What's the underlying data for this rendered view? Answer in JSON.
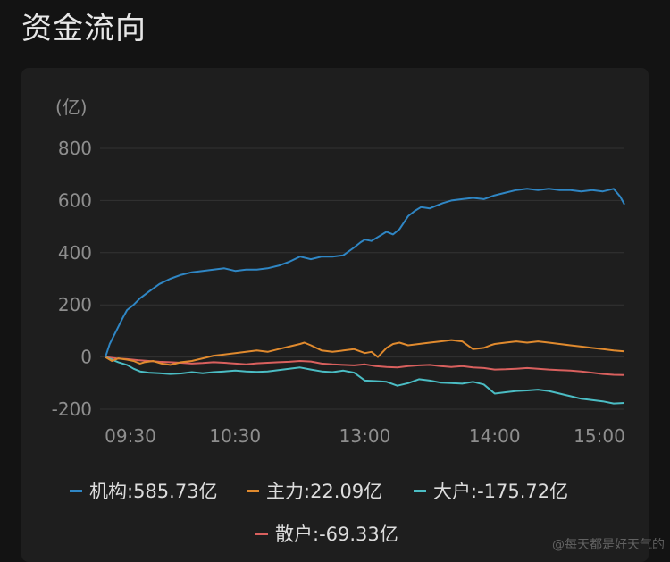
{
  "title": "资金流向",
  "unit": "(亿)",
  "chart_data": {
    "type": "line",
    "xlabel": "",
    "ylabel": "(亿)",
    "ylim": [
      -200,
      800
    ],
    "yticks": [
      800,
      600,
      400,
      200,
      0,
      -200
    ],
    "xticks": [
      {
        "label": "09:30",
        "t": 0
      },
      {
        "label": "10:30",
        "t": 60
      },
      {
        "label": "13:00",
        "t": 120
      },
      {
        "label": "14:00",
        "t": 180
      },
      {
        "label": "15:00",
        "t": 240
      }
    ],
    "xlim": [
      0,
      240
    ],
    "grid": true,
    "legend": "bottom",
    "series": [
      {
        "name": "机构",
        "legend": "机构:585.73亿",
        "color": "#2f86c4",
        "t": [
          0,
          2,
          5,
          8,
          10,
          13,
          16,
          20,
          25,
          30,
          35,
          40,
          45,
          50,
          55,
          60,
          65,
          70,
          75,
          80,
          85,
          90,
          95,
          100,
          105,
          110,
          115,
          118,
          120,
          123,
          126,
          130,
          133,
          136,
          140,
          143,
          146,
          150,
          153,
          156,
          160,
          165,
          170,
          175,
          180,
          185,
          190,
          195,
          200,
          205,
          210,
          215,
          220,
          225,
          230,
          235,
          238,
          240
        ],
        "v": [
          0,
          50,
          100,
          150,
          180,
          200,
          225,
          250,
          280,
          300,
          315,
          325,
          330,
          335,
          340,
          330,
          335,
          335,
          340,
          350,
          365,
          385,
          375,
          385,
          385,
          390,
          420,
          440,
          450,
          445,
          460,
          480,
          470,
          490,
          540,
          560,
          575,
          570,
          580,
          590,
          600,
          605,
          610,
          605,
          620,
          630,
          640,
          645,
          640,
          645,
          640,
          640,
          635,
          640,
          635,
          645,
          615,
          585
        ]
      },
      {
        "name": "主力",
        "legend": "主力:22.09亿",
        "color": "#e08a2e",
        "t": [
          0,
          3,
          6,
          10,
          13,
          16,
          18,
          22,
          26,
          30,
          35,
          40,
          45,
          50,
          55,
          60,
          65,
          70,
          75,
          80,
          85,
          90,
          92,
          95,
          100,
          105,
          110,
          115,
          120,
          123,
          126,
          130,
          133,
          136,
          140,
          145,
          150,
          155,
          160,
          165,
          170,
          175,
          178,
          180,
          185,
          190,
          195,
          200,
          205,
          210,
          215,
          220,
          225,
          230,
          235,
          240
        ],
        "v": [
          0,
          -15,
          -5,
          -10,
          -15,
          -25,
          -20,
          -15,
          -25,
          -30,
          -20,
          -15,
          -5,
          5,
          10,
          15,
          20,
          25,
          20,
          30,
          40,
          50,
          55,
          45,
          25,
          20,
          25,
          30,
          15,
          20,
          0,
          35,
          50,
          55,
          45,
          50,
          55,
          60,
          65,
          60,
          30,
          35,
          45,
          50,
          55,
          60,
          55,
          60,
          55,
          50,
          45,
          40,
          35,
          30,
          25,
          22
        ]
      },
      {
        "name": "大户",
        "legend": "大户:-175.72亿",
        "color": "#4bbdc4",
        "t": [
          0,
          3,
          6,
          10,
          13,
          16,
          20,
          25,
          30,
          35,
          40,
          45,
          50,
          55,
          60,
          65,
          70,
          75,
          80,
          85,
          90,
          95,
          100,
          105,
          110,
          115,
          120,
          125,
          130,
          135,
          140,
          145,
          150,
          155,
          160,
          165,
          170,
          175,
          180,
          185,
          190,
          195,
          200,
          205,
          210,
          215,
          220,
          225,
          230,
          235,
          240
        ],
        "v": [
          0,
          -10,
          -20,
          -30,
          -45,
          -55,
          -60,
          -62,
          -65,
          -63,
          -58,
          -62,
          -58,
          -55,
          -52,
          -55,
          -57,
          -55,
          -50,
          -45,
          -40,
          -48,
          -55,
          -58,
          -52,
          -60,
          -90,
          -92,
          -95,
          -110,
          -100,
          -85,
          -90,
          -98,
          -100,
          -102,
          -95,
          -105,
          -140,
          -135,
          -130,
          -128,
          -125,
          -130,
          -140,
          -150,
          -160,
          -165,
          -170,
          -178,
          -176
        ]
      },
      {
        "name": "散户",
        "legend": "散户:-69.33亿",
        "color": "#d9605e",
        "t": [
          0,
          5,
          10,
          15,
          20,
          25,
          30,
          35,
          40,
          45,
          50,
          55,
          60,
          65,
          70,
          75,
          80,
          85,
          90,
          95,
          100,
          105,
          110,
          115,
          120,
          125,
          130,
          135,
          140,
          145,
          150,
          155,
          160,
          165,
          170,
          175,
          180,
          185,
          190,
          195,
          200,
          205,
          210,
          215,
          220,
          225,
          230,
          235,
          240
        ],
        "v": [
          0,
          -5,
          -8,
          -12,
          -15,
          -18,
          -20,
          -22,
          -25,
          -23,
          -20,
          -22,
          -25,
          -28,
          -24,
          -22,
          -20,
          -18,
          -15,
          -17,
          -25,
          -28,
          -30,
          -32,
          -28,
          -35,
          -38,
          -40,
          -35,
          -32,
          -30,
          -35,
          -38,
          -35,
          -40,
          -42,
          -48,
          -47,
          -45,
          -42,
          -45,
          -48,
          -50,
          -52,
          -55,
          -60,
          -65,
          -68,
          -69
        ]
      }
    ]
  },
  "watermark": "@每天都是好天气的"
}
